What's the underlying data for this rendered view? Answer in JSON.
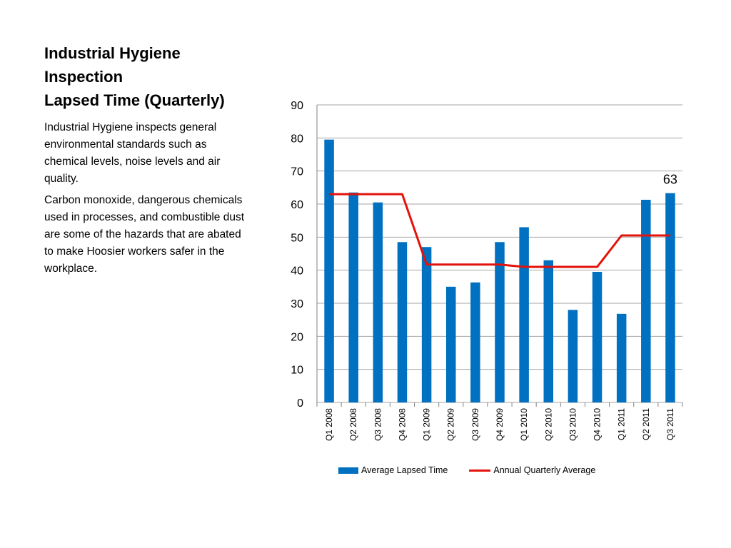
{
  "slide": {
    "title_lines": [
      "Industrial Hygiene",
      "Inspection",
      "Lapsed Time (Quarterly)"
    ],
    "paragraphs": [
      "Industrial Hygiene inspects general environmental standards such as chemical levels, noise levels and air quality.",
      "Carbon monoxide, dangerous chemicals used in processes, and combustible dust are some of the hazards that are abated to make Hoosier workers safer in the workplace."
    ]
  },
  "colors": {
    "bar": "#0070C0",
    "line": "#E3120B",
    "grid": "#A6A6A6"
  },
  "chart_data": {
    "type": "bar",
    "categories": [
      "Q1 2008",
      "Q2 2008",
      "Q3 2008",
      "Q4 2008",
      "Q1 2009",
      "Q2 2009",
      "Q3 2009",
      "Q4 2009",
      "Q1 2010",
      "Q2 2010",
      "Q3 2010",
      "Q4 2010",
      "Q1 2011",
      "Q2 2011",
      "Q3 2011"
    ],
    "series": [
      {
        "name": "Average Lapsed Time",
        "type": "bar",
        "values": [
          79.5,
          63.5,
          60.5,
          48.5,
          47,
          35,
          36.3,
          48.5,
          53,
          43,
          28,
          39.5,
          26.8,
          61.3,
          63.3
        ]
      },
      {
        "name": "Annual Quarterly Average",
        "type": "line",
        "values": [
          63,
          63,
          63,
          63,
          41.7,
          41.7,
          41.7,
          41.7,
          41,
          41,
          41,
          41,
          50.5,
          50.5,
          50.5
        ]
      }
    ],
    "annotation": {
      "category": "Q3 2011",
      "text": "63"
    },
    "ylim": [
      0,
      90
    ],
    "yticks": [
      "0",
      "10",
      "20",
      "30",
      "40",
      "50",
      "60",
      "70",
      "80",
      "90"
    ],
    "grid": true,
    "legend_position": "bottom"
  }
}
